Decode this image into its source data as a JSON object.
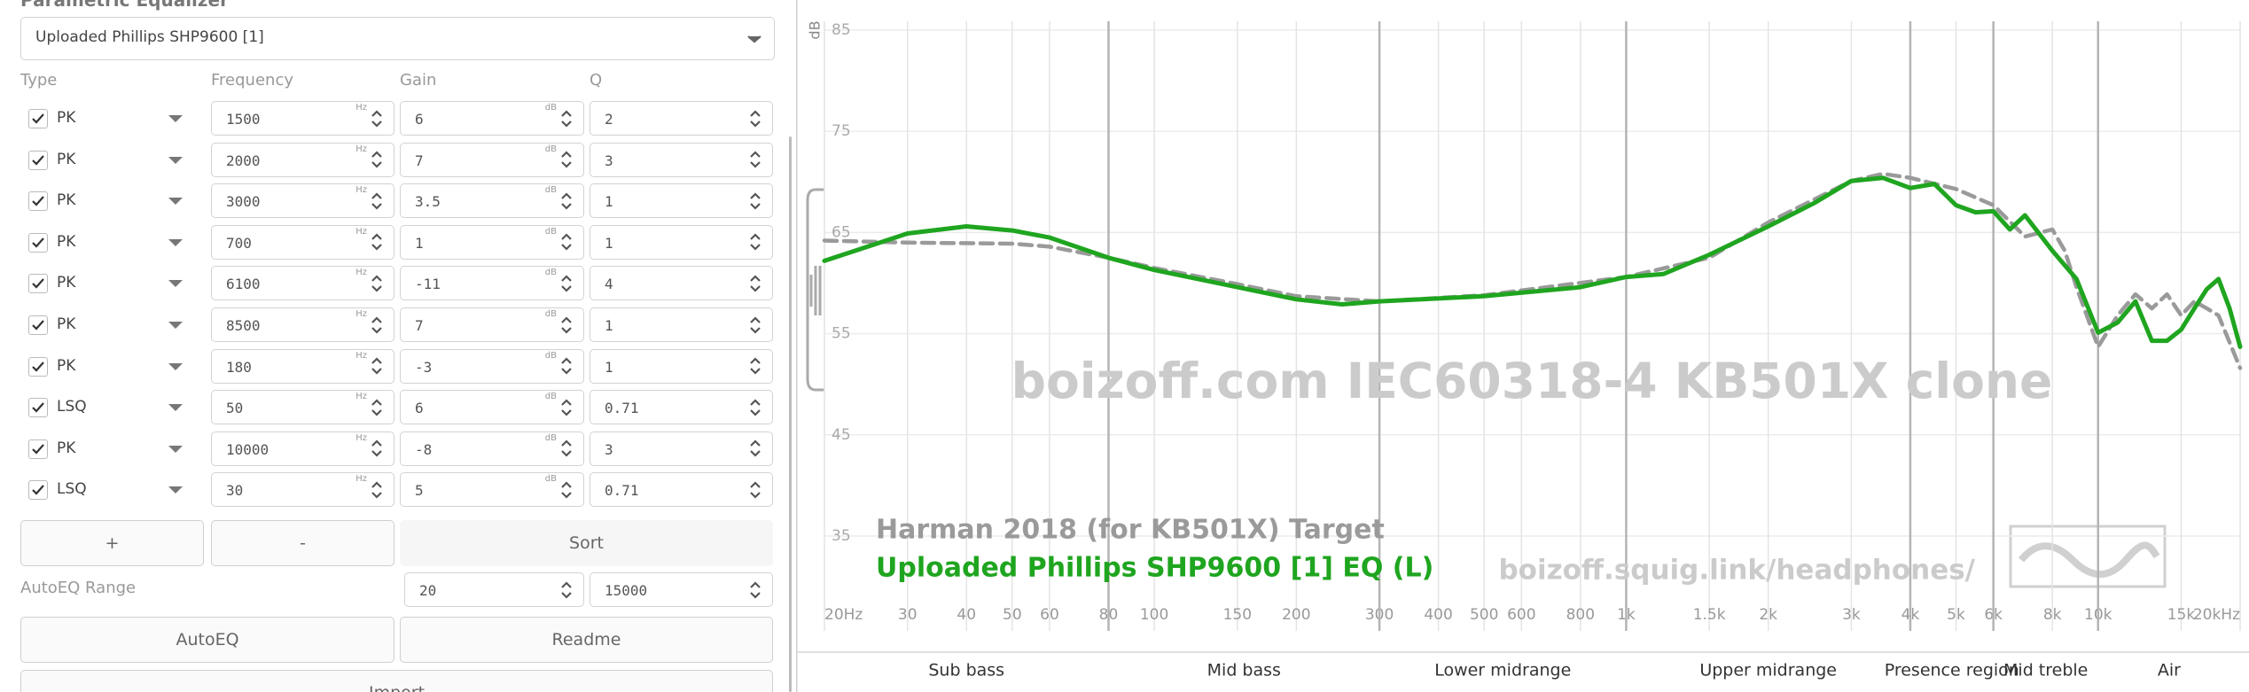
{
  "eq_panel": {
    "title": "Parametric Equalizer",
    "preset": "Uploaded Phillips SHP9600 [1]",
    "headers": [
      "Type",
      "Frequency",
      "Gain",
      "Q"
    ],
    "freq_unit": "Hz",
    "gain_unit": "dB",
    "filters": [
      {
        "enabled": true,
        "type": "PK",
        "freq": 1500,
        "gain": 6,
        "q": 2
      },
      {
        "enabled": true,
        "type": "PK",
        "freq": 2000,
        "gain": 7,
        "q": 3
      },
      {
        "enabled": true,
        "type": "PK",
        "freq": 3000,
        "gain": 3.5,
        "q": 1
      },
      {
        "enabled": true,
        "type": "PK",
        "freq": 700,
        "gain": 1,
        "q": 1
      },
      {
        "enabled": true,
        "type": "PK",
        "freq": 6100,
        "gain": -11,
        "q": 4
      },
      {
        "enabled": true,
        "type": "PK",
        "freq": 8500,
        "gain": 7,
        "q": 1
      },
      {
        "enabled": true,
        "type": "PK",
        "freq": 180,
        "gain": -3,
        "q": 1
      },
      {
        "enabled": true,
        "type": "LSQ",
        "freq": 50,
        "gain": 6,
        "q": 0.71
      },
      {
        "enabled": true,
        "type": "PK",
        "freq": 10000,
        "gain": -8,
        "q": 3
      },
      {
        "enabled": true,
        "type": "LSQ",
        "freq": 30,
        "gain": 5,
        "q": 0.71
      }
    ],
    "buttons": {
      "add": "+",
      "remove": "-",
      "sort": "Sort",
      "autoeq": "AutoEQ",
      "readme": "Readme",
      "import": "Import"
    },
    "autoeq_range": {
      "label": "AutoEQ Range",
      "min": 20,
      "max": 15000
    }
  },
  "chart_data": {
    "type": "line",
    "y_label": "dB",
    "watermark": "boizoff.com IEC60318-4 KB501X clone",
    "site": "boizoff.squig.link/headphones/",
    "x_scale": "log",
    "xlim": [
      20,
      20000
    ],
    "ylim": [
      35,
      85
    ],
    "xticks": [
      {
        "value": 20,
        "label": "20Hz"
      },
      30,
      40,
      50,
      60,
      80,
      100,
      150,
      200,
      300,
      400,
      500,
      600,
      800,
      {
        "value": 1000,
        "label": "1k"
      },
      {
        "value": 1500,
        "label": "1.5k"
      },
      {
        "value": 2000,
        "label": "2k"
      },
      {
        "value": 3000,
        "label": "3k"
      },
      {
        "value": 4000,
        "label": "4k"
      },
      {
        "value": 5000,
        "label": "5k"
      },
      {
        "value": 6000,
        "label": "6k"
      },
      {
        "value": 8000,
        "label": "8k"
      },
      {
        "value": 10000,
        "label": "10k"
      },
      {
        "value": 15000,
        "label": "15k"
      },
      {
        "value": 20000,
        "label": "20kHz"
      }
    ],
    "yticks": [
      35,
      45,
      55,
      65,
      75,
      85
    ],
    "grid": true,
    "band_edges": [
      20,
      80,
      300,
      1000,
      4000,
      6000,
      10000,
      20000
    ],
    "bands": [
      "Sub bass",
      "Mid bass",
      "Lower midrange",
      "Upper midrange",
      "Presence region",
      "Mid treble",
      "Air"
    ],
    "series": [
      {
        "name": "Harman 2018 (for KB501X) Target",
        "color": "#9a9a9a",
        "dashed": true,
        "x": [
          20,
          30,
          50,
          60,
          80,
          100,
          150,
          200,
          300,
          500,
          1000,
          1500,
          2000,
          3000,
          3500,
          4000,
          5000,
          6000,
          7000,
          8000,
          8500,
          9000,
          10000,
          11000,
          12000,
          13000,
          14000,
          15000,
          16000,
          17000,
          18000,
          20000
        ],
        "values": [
          64.2,
          64.0,
          63.9,
          63.6,
          62.5,
          61.5,
          59.9,
          58.7,
          58.2,
          58.8,
          60.6,
          62.5,
          66.0,
          70.1,
          70.8,
          70.4,
          69.3,
          67.7,
          64.6,
          65.3,
          63.2,
          59.6,
          53.7,
          56.8,
          58.9,
          57.5,
          58.9,
          56.8,
          58.2,
          57.5,
          56.8,
          51.6
        ]
      },
      {
        "name": "Uploaded Phillips SHP9600 [1] EQ (L)",
        "color": "#1fa51f",
        "dashed": false,
        "x": [
          20,
          30,
          40,
          50,
          60,
          80,
          100,
          150,
          200,
          250,
          300,
          500,
          800,
          1000,
          1200,
          1500,
          2000,
          2500,
          3000,
          3500,
          4000,
          4500,
          5000,
          5500,
          6000,
          6500,
          7000,
          8000,
          9000,
          10000,
          11000,
          12000,
          13000,
          14000,
          15000,
          16000,
          17000,
          18000,
          19000,
          20000
        ],
        "values": [
          62.2,
          64.9,
          65.6,
          65.2,
          64.5,
          62.5,
          61.3,
          59.6,
          58.4,
          57.9,
          58.2,
          58.7,
          59.6,
          60.6,
          60.9,
          62.8,
          65.6,
          67.9,
          70.1,
          70.4,
          69.4,
          69.8,
          67.7,
          67.0,
          67.1,
          65.3,
          66.7,
          63.2,
          60.4,
          55.1,
          56.1,
          58.2,
          54.3,
          54.3,
          55.4,
          57.5,
          59.4,
          60.4,
          57.5,
          53.7
        ]
      }
    ]
  }
}
